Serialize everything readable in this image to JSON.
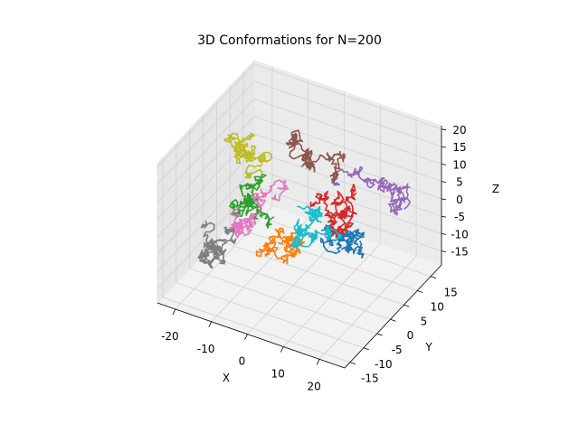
{
  "chart_data": {
    "type": "line",
    "projection": "3d",
    "title": "3D Conformations for N=200",
    "xlabel": "X",
    "ylabel": "Y",
    "zlabel": "Z",
    "xlim": [
      -25,
      27
    ],
    "ylim": [
      -17,
      19
    ],
    "zlim": [
      -19,
      21
    ],
    "xticks": [
      -20,
      -10,
      0,
      10,
      20
    ],
    "yticks": [
      -15,
      -10,
      -5,
      0,
      5,
      10,
      15
    ],
    "zticks": [
      -15,
      -10,
      -5,
      0,
      5,
      10,
      15,
      20
    ],
    "grid": true,
    "legend": "none",
    "polymer_length": 200,
    "series": [
      {
        "color": "#1f77b4",
        "start": [
          8,
          0,
          0
        ]
      },
      {
        "color": "#ff7f0e",
        "start": [
          -2,
          -3,
          -5
        ]
      },
      {
        "color": "#2ca02c",
        "start": [
          -8,
          -6,
          6
        ]
      },
      {
        "color": "#d62728",
        "start": [
          2,
          4,
          2
        ]
      },
      {
        "color": "#9467bd",
        "start": [
          6,
          8,
          6
        ]
      },
      {
        "color": "#8c564b",
        "start": [
          4,
          10,
          12
        ]
      },
      {
        "color": "#e377c2",
        "start": [
          -6,
          0,
          4
        ]
      },
      {
        "color": "#7f7f7f",
        "start": [
          -16,
          -4,
          -6
        ]
      },
      {
        "color": "#bcbd22",
        "start": [
          -10,
          2,
          8
        ]
      },
      {
        "color": "#17becf",
        "start": [
          10,
          4,
          -4
        ]
      }
    ]
  }
}
